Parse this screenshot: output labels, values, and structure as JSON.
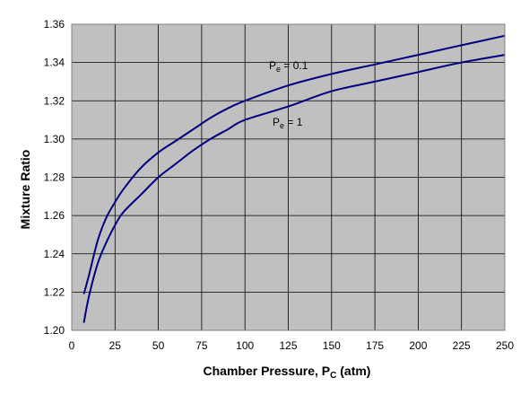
{
  "chart_data": {
    "type": "line",
    "title": "",
    "xlabel": "Chamber Pressure, P",
    "xlabel_sub": "C",
    "xlabel_suffix": " (atm)",
    "ylabel": "Mixture Ratio",
    "xlim": [
      0,
      250
    ],
    "ylim": [
      1.2,
      1.36
    ],
    "xticks": [
      0,
      25,
      50,
      75,
      100,
      125,
      150,
      175,
      200,
      225,
      250
    ],
    "yticks": [
      1.2,
      1.22,
      1.24,
      1.26,
      1.28,
      1.3,
      1.32,
      1.34,
      1.36
    ],
    "grid": true,
    "legend": "none",
    "plot_background": "#c0c0c0",
    "line_color": "#000080",
    "series": [
      {
        "name": "Pe = 0.1",
        "x": [
          7,
          10,
          15,
          20,
          25,
          30,
          40,
          50,
          60,
          70,
          80,
          90,
          100,
          125,
          150,
          175,
          200,
          225,
          250
        ],
        "y": [
          1.219,
          1.229,
          1.247,
          1.259,
          1.267,
          1.274,
          1.285,
          1.293,
          1.299,
          1.305,
          1.311,
          1.316,
          1.32,
          1.328,
          1.334,
          1.339,
          1.344,
          1.349,
          1.354
        ]
      },
      {
        "name": "Pe = 1",
        "x": [
          7,
          10,
          15,
          20,
          25,
          30,
          40,
          50,
          60,
          70,
          80,
          90,
          100,
          125,
          150,
          175,
          200,
          225,
          250
        ],
        "y": [
          1.204,
          1.218,
          1.235,
          1.246,
          1.255,
          1.262,
          1.271,
          1.28,
          1.287,
          1.294,
          1.3,
          1.305,
          1.31,
          1.317,
          1.325,
          1.33,
          1.335,
          1.34,
          1.344
        ]
      }
    ],
    "annotations": [
      {
        "text": "P",
        "sub": "e",
        "suffix": " = 0.1",
        "series": 0
      },
      {
        "text": "P",
        "sub": "e",
        "suffix": " = 1",
        "series": 1
      }
    ]
  }
}
